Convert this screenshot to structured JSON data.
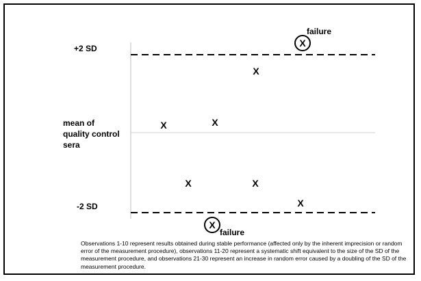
{
  "labels": {
    "plus_2sd": "+2 SD",
    "minus_2sd": "-2 SD",
    "mean_lines": [
      "mean of",
      "quality control",
      "sera"
    ]
  },
  "marker_symbol": "X",
  "failure_label": "failure",
  "colors": {
    "ink": "#000000",
    "mean_line": "#cfcfcf",
    "axis": "#bdbdbd"
  },
  "caption": "Observations 1-10 represent results obtained during stable performance (affected only by the inherent imprecision or random error of the measurement procedure), observations 11-20 represent a systematic shift equivalent to the size of the SD of the measurement procedure, and observations 21-30 represent an increase in random error caused by a doubling of the SD of the measurement procedure."
}
